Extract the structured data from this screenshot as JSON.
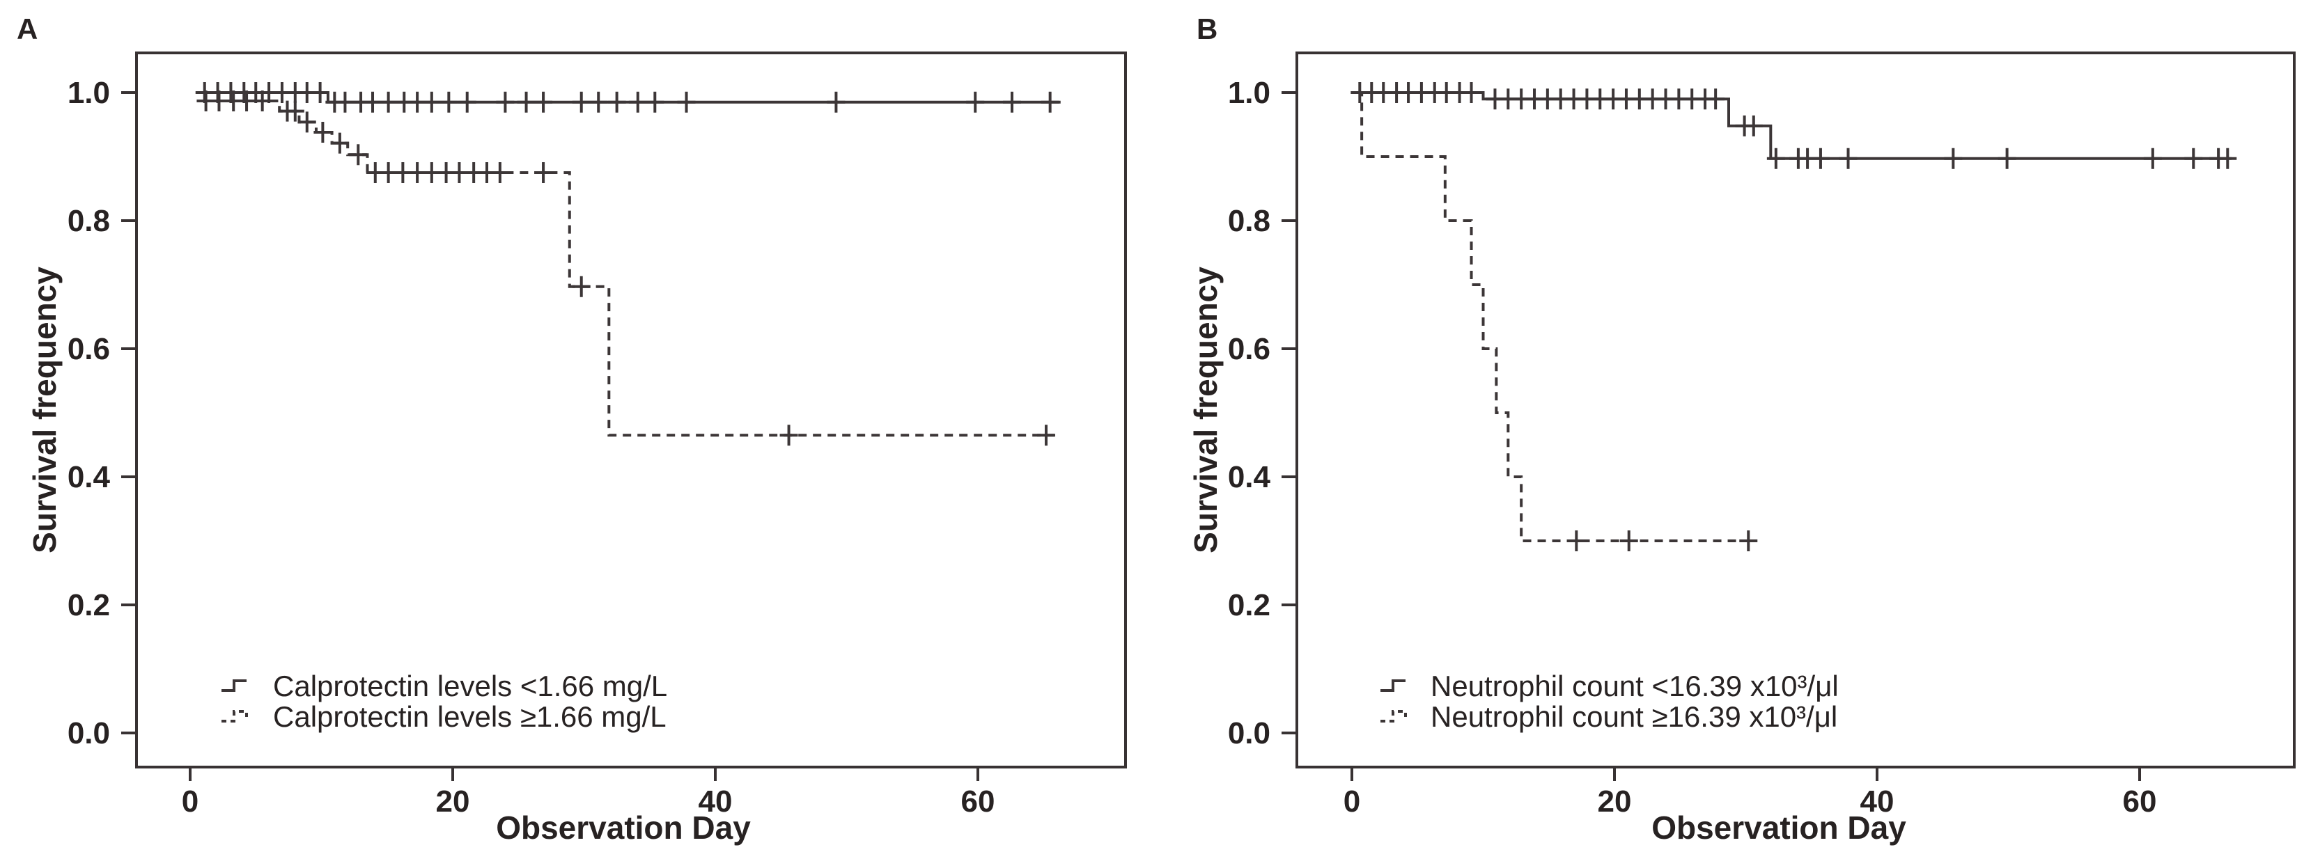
{
  "figure": {
    "background": "#ffffff",
    "text_color": "#272222",
    "line_color": "#3c3637"
  },
  "chart_data": [
    {
      "type": "line",
      "subtype": "kaplan-meier-step",
      "panel_label": "A",
      "xlabel": "Observation Day",
      "ylabel": "Survival frequency",
      "x_tick_values": [
        0,
        20,
        40,
        60
      ],
      "x_tick_labels": [
        "0",
        "20",
        "40",
        "60"
      ],
      "y_tick_values": [
        1.0,
        0.8,
        0.6,
        0.4,
        0.2,
        0.0
      ],
      "y_tick_labels": [
        "1.0",
        "0.8",
        "0.6",
        "0.4",
        "0.2",
        "0.0"
      ],
      "xlim": [
        -4,
        71.5
      ],
      "ylim": [
        -0.05,
        1.06
      ],
      "grid": false,
      "legend_position": "lower-left-inside",
      "series": [
        {
          "name": "Calprotectin levels <1.66 mg/L",
          "style": "solid",
          "steps": [
            [
              0.5,
              1.0
            ],
            [
              10.5,
              0.985
            ]
          ],
          "end_day": 66.3,
          "censors": [
            [
              1.1,
              1.0
            ],
            [
              2.1,
              1.0
            ],
            [
              3.1,
              1.0
            ],
            [
              4.1,
              1.0
            ],
            [
              5.0,
              1.0
            ],
            [
              6.0,
              1.0
            ],
            [
              7.0,
              1.0
            ],
            [
              8.0,
              1.0
            ],
            [
              8.9,
              1.0
            ],
            [
              9.9,
              1.0
            ],
            [
              11.0,
              0.985
            ],
            [
              11.8,
              0.985
            ],
            [
              13.0,
              0.985
            ],
            [
              13.9,
              0.985
            ],
            [
              15.1,
              0.985
            ],
            [
              16.3,
              0.985
            ],
            [
              17.3,
              0.985
            ],
            [
              18.4,
              0.985
            ],
            [
              19.7,
              0.985
            ],
            [
              21.1,
              0.985
            ],
            [
              24.0,
              0.985
            ],
            [
              25.6,
              0.985
            ],
            [
              26.9,
              0.985
            ],
            [
              29.8,
              0.985
            ],
            [
              31.1,
              0.985
            ],
            [
              32.5,
              0.985
            ],
            [
              34.1,
              0.985
            ],
            [
              35.4,
              0.985
            ],
            [
              37.8,
              0.985
            ],
            [
              49.2,
              0.985
            ],
            [
              59.8,
              0.985
            ],
            [
              62.6,
              0.985
            ],
            [
              65.5,
              0.985
            ]
          ]
        },
        {
          "name": "Calprotectin levels ≥1.66 mg/L",
          "style": "dashed",
          "steps": [
            [
              0.5,
              0.987
            ],
            [
              6.8,
              0.971
            ],
            [
              8.3,
              0.954
            ],
            [
              9.6,
              0.938
            ],
            [
              10.8,
              0.921
            ],
            [
              12.0,
              0.903
            ],
            [
              13.5,
              0.875
            ],
            [
              28.9,
              0.697
            ],
            [
              31.9,
              0.465
            ]
          ],
          "end_day": 65.8,
          "censors": [
            [
              1.2,
              0.987
            ],
            [
              2.2,
              0.987
            ],
            [
              3.3,
              0.987
            ],
            [
              4.3,
              0.987
            ],
            [
              5.5,
              0.987
            ],
            [
              7.4,
              0.971
            ],
            [
              8.0,
              0.971
            ],
            [
              8.9,
              0.954
            ],
            [
              10.1,
              0.938
            ],
            [
              11.4,
              0.921
            ],
            [
              12.8,
              0.903
            ],
            [
              14.1,
              0.875
            ],
            [
              15.1,
              0.875
            ],
            [
              16.2,
              0.875
            ],
            [
              17.3,
              0.875
            ],
            [
              18.4,
              0.875
            ],
            [
              19.5,
              0.875
            ],
            [
              20.5,
              0.875
            ],
            [
              21.6,
              0.875
            ],
            [
              22.6,
              0.875
            ],
            [
              23.6,
              0.875
            ],
            [
              26.9,
              0.875
            ],
            [
              29.8,
              0.697
            ],
            [
              45.6,
              0.465
            ],
            [
              65.2,
              0.465
            ]
          ]
        }
      ]
    },
    {
      "type": "line",
      "subtype": "kaplan-meier-step",
      "panel_label": "B",
      "xlabel": "Observation Day",
      "ylabel": "Survival frequency",
      "x_tick_values": [
        0,
        20,
        40,
        60
      ],
      "x_tick_labels": [
        "0",
        "20",
        "40",
        "60"
      ],
      "y_tick_values": [
        1.0,
        0.8,
        0.6,
        0.4,
        0.2,
        0.0
      ],
      "y_tick_labels": [
        "1.0",
        "0.8",
        "0.6",
        "0.4",
        "0.2",
        "0.0"
      ],
      "xlim": [
        -4,
        72
      ],
      "ylim": [
        -0.05,
        1.06
      ],
      "grid": false,
      "legend_position": "lower-left-inside",
      "series": [
        {
          "name": "Neutrophil count <16.39 x10³/μl",
          "style": "solid",
          "steps": [
            [
              0,
              1.0
            ],
            [
              10.0,
              0.99
            ],
            [
              28.7,
              0.948
            ],
            [
              31.9,
              0.897
            ]
          ],
          "end_day": 67.0,
          "censors": [
            [
              0.6,
              1.0
            ],
            [
              1.5,
              1.0
            ],
            [
              2.4,
              1.0
            ],
            [
              3.4,
              1.0
            ],
            [
              4.3,
              1.0
            ],
            [
              5.3,
              1.0
            ],
            [
              6.3,
              1.0
            ],
            [
              7.2,
              1.0
            ],
            [
              8.2,
              1.0
            ],
            [
              9.1,
              1.0
            ],
            [
              10.9,
              0.99
            ],
            [
              11.9,
              0.99
            ],
            [
              12.9,
              0.99
            ],
            [
              13.9,
              0.99
            ],
            [
              14.9,
              0.99
            ],
            [
              15.9,
              0.99
            ],
            [
              16.9,
              0.99
            ],
            [
              17.9,
              0.99
            ],
            [
              18.9,
              0.99
            ],
            [
              19.9,
              0.99
            ],
            [
              20.9,
              0.99
            ],
            [
              21.9,
              0.99
            ],
            [
              22.9,
              0.99
            ],
            [
              23.9,
              0.99
            ],
            [
              24.9,
              0.99
            ],
            [
              25.9,
              0.99
            ],
            [
              26.9,
              0.99
            ],
            [
              27.7,
              0.99
            ],
            [
              29.9,
              0.948
            ],
            [
              30.6,
              0.948
            ],
            [
              32.3,
              0.897
            ],
            [
              34.0,
              0.897
            ],
            [
              34.7,
              0.897
            ],
            [
              35.7,
              0.897
            ],
            [
              37.8,
              0.897
            ],
            [
              45.8,
              0.897
            ],
            [
              49.9,
              0.897
            ],
            [
              61.0,
              0.897
            ],
            [
              64.1,
              0.897
            ],
            [
              66.0,
              0.897
            ],
            [
              66.7,
              0.897
            ]
          ]
        },
        {
          "name": "Neutrophil count ≥16.39 x10³/μl",
          "style": "dashed",
          "steps": [
            [
              0.4,
              1.0
            ],
            [
              0.75,
              0.9
            ],
            [
              7.1,
              0.8
            ],
            [
              9.1,
              0.7
            ],
            [
              10.0,
              0.6
            ],
            [
              11.0,
              0.5
            ],
            [
              11.9,
              0.4
            ],
            [
              12.9,
              0.3
            ]
          ],
          "end_day": 30.3,
          "censors": [
            [
              17.1,
              0.3
            ],
            [
              21.1,
              0.3
            ],
            [
              30.2,
              0.3
            ]
          ]
        }
      ]
    }
  ]
}
